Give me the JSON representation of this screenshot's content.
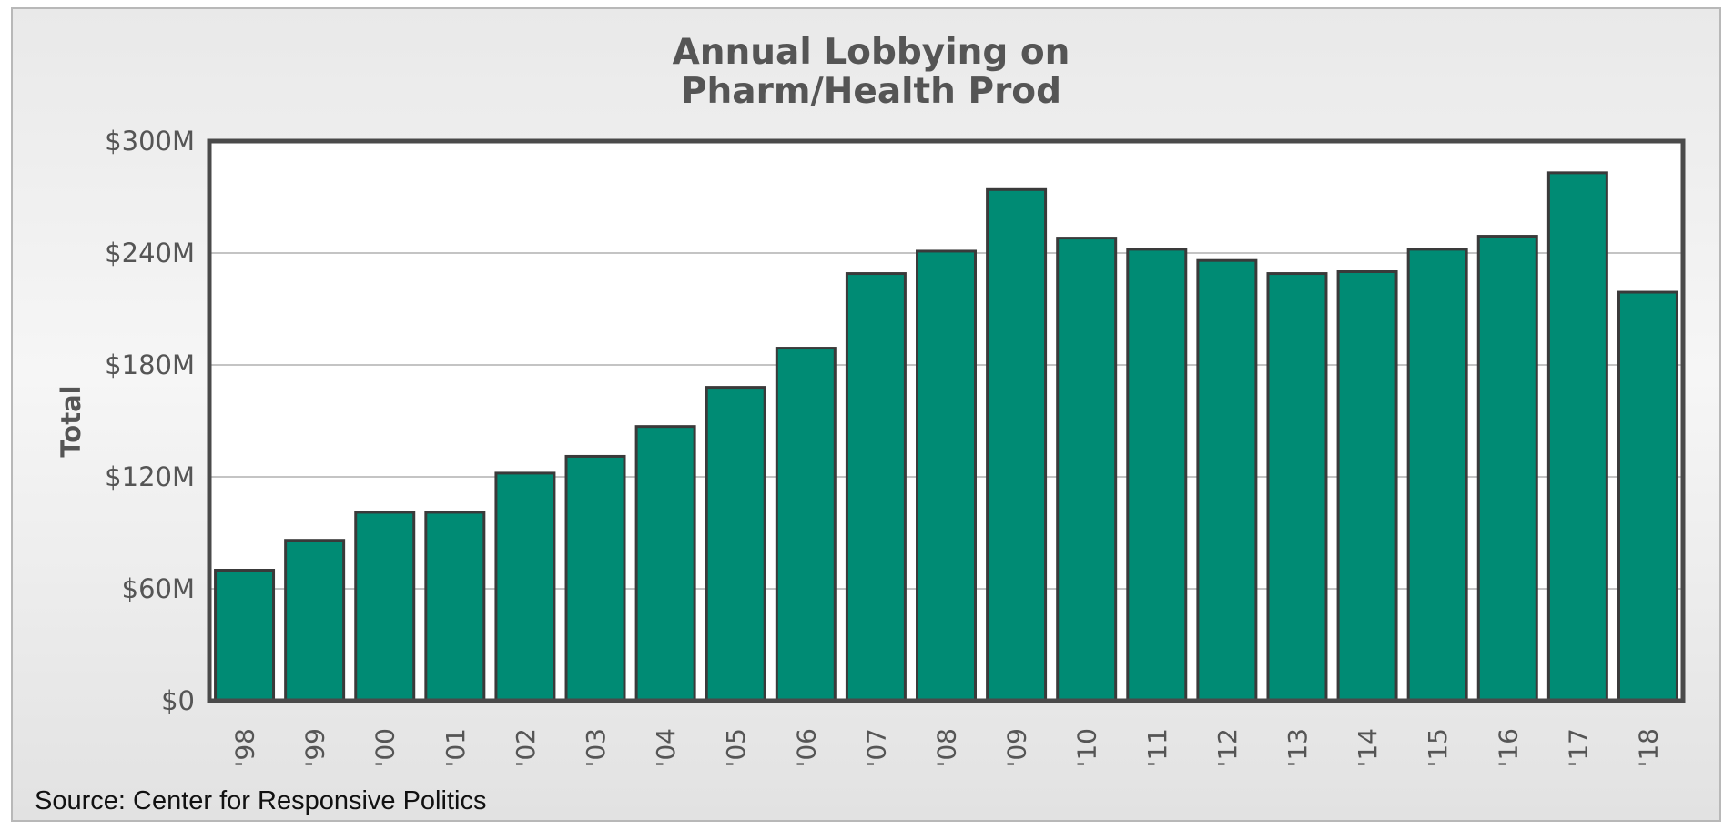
{
  "chart_data": {
    "type": "bar",
    "title": [
      "Annual Lobbying on",
      "Pharm/Health Prod"
    ],
    "ylabel": "Total",
    "xlabel": "",
    "categories": [
      "'98",
      "'99",
      "'00",
      "'01",
      "'02",
      "'03",
      "'04",
      "'05",
      "'06",
      "'07",
      "'08",
      "'09",
      "'10",
      "'11",
      "'12",
      "'13",
      "'14",
      "'15",
      "'16",
      "'17",
      "'18"
    ],
    "values": [
      70,
      86,
      101,
      101,
      122,
      131,
      147,
      168,
      189,
      229,
      241,
      274,
      248,
      242,
      236,
      229,
      230,
      242,
      249,
      283,
      219
    ],
    "value_unit": "$M",
    "ylim": [
      0,
      300
    ],
    "yticks": [
      0,
      60,
      120,
      180,
      240,
      300
    ],
    "ytick_labels": [
      "$0",
      "$60M",
      "$120M",
      "$180M",
      "$240M",
      "$300M"
    ],
    "grid": true,
    "bar_color": "#008b74",
    "bar_edge_color": "#3a3a3a"
  },
  "source": "Source: Center for Responsive Politics"
}
